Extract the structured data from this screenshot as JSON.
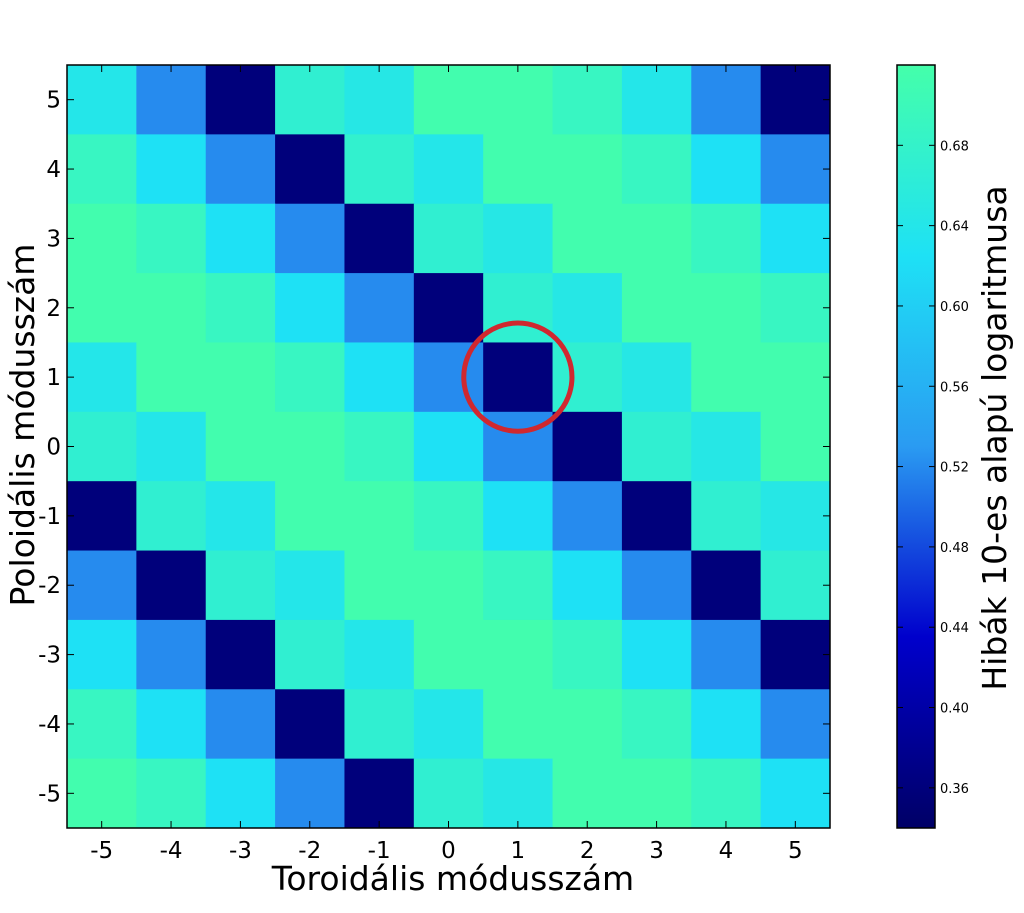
{
  "chart_data": {
    "type": "heatmap",
    "title": "",
    "xlabel": "Toroidális módusszám",
    "ylabel": "Poloidális módusszám",
    "x": [
      -5,
      -4,
      -3,
      -2,
      -1,
      0,
      1,
      2,
      3,
      4,
      5
    ],
    "y": [
      5,
      4,
      3,
      2,
      1,
      0,
      -1,
      -2,
      -3,
      -4,
      -5
    ],
    "values": [
      [
        0.64,
        0.52,
        0.36,
        0.67,
        0.645,
        0.715,
        0.715,
        0.69,
        0.64,
        0.52,
        0.36
      ],
      [
        0.69,
        0.625,
        0.52,
        0.36,
        0.675,
        0.64,
        0.715,
        0.715,
        0.69,
        0.625,
        0.52
      ],
      [
        0.715,
        0.69,
        0.625,
        0.52,
        0.36,
        0.67,
        0.645,
        0.715,
        0.715,
        0.69,
        0.625
      ],
      [
        0.715,
        0.715,
        0.69,
        0.625,
        0.52,
        0.36,
        0.67,
        0.645,
        0.715,
        0.715,
        0.69
      ],
      [
        0.64,
        0.715,
        0.715,
        0.69,
        0.625,
        0.52,
        0.36,
        0.67,
        0.645,
        0.715,
        0.715
      ],
      [
        0.67,
        0.64,
        0.715,
        0.715,
        0.69,
        0.625,
        0.52,
        0.36,
        0.67,
        0.645,
        0.715
      ],
      [
        0.36,
        0.67,
        0.64,
        0.715,
        0.715,
        0.69,
        0.625,
        0.52,
        0.36,
        0.67,
        0.645
      ],
      [
        0.52,
        0.36,
        0.67,
        0.64,
        0.715,
        0.715,
        0.69,
        0.625,
        0.52,
        0.36,
        0.67
      ],
      [
        0.625,
        0.52,
        0.36,
        0.67,
        0.64,
        0.715,
        0.715,
        0.69,
        0.625,
        0.52,
        0.36
      ],
      [
        0.69,
        0.625,
        0.52,
        0.36,
        0.67,
        0.64,
        0.715,
        0.715,
        0.69,
        0.625,
        0.52
      ],
      [
        0.715,
        0.69,
        0.625,
        0.52,
        0.36,
        0.67,
        0.645,
        0.715,
        0.715,
        0.69,
        0.625
      ]
    ],
    "x_ticks": [
      "-5",
      "-4",
      "-3",
      "-2",
      "-1",
      "0",
      "1",
      "2",
      "3",
      "4",
      "5"
    ],
    "y_ticks": [
      "5",
      "4",
      "3",
      "2",
      "1",
      "0",
      "-1",
      "-2",
      "-3",
      "-4",
      "-5"
    ],
    "colorbar": {
      "label": "Hibák 10-es alapú logaritmusa",
      "min": 0.34,
      "max": 0.72,
      "ticks": [
        0.36,
        0.4,
        0.44,
        0.48,
        0.52,
        0.56,
        0.6,
        0.64,
        0.68
      ],
      "tick_labels": [
        "0.36",
        "0.40",
        "0.44",
        "0.48",
        "0.52",
        "0.56",
        "0.60",
        "0.64",
        "0.68"
      ]
    },
    "colormap": [
      "#000066",
      "#0000cc",
      "#2a9bf2",
      "#1ee1f5",
      "#44ffaa"
    ],
    "grid": false,
    "annotations": [
      {
        "type": "circle",
        "x": 1,
        "y": 1,
        "color": "#d0282f"
      }
    ]
  }
}
